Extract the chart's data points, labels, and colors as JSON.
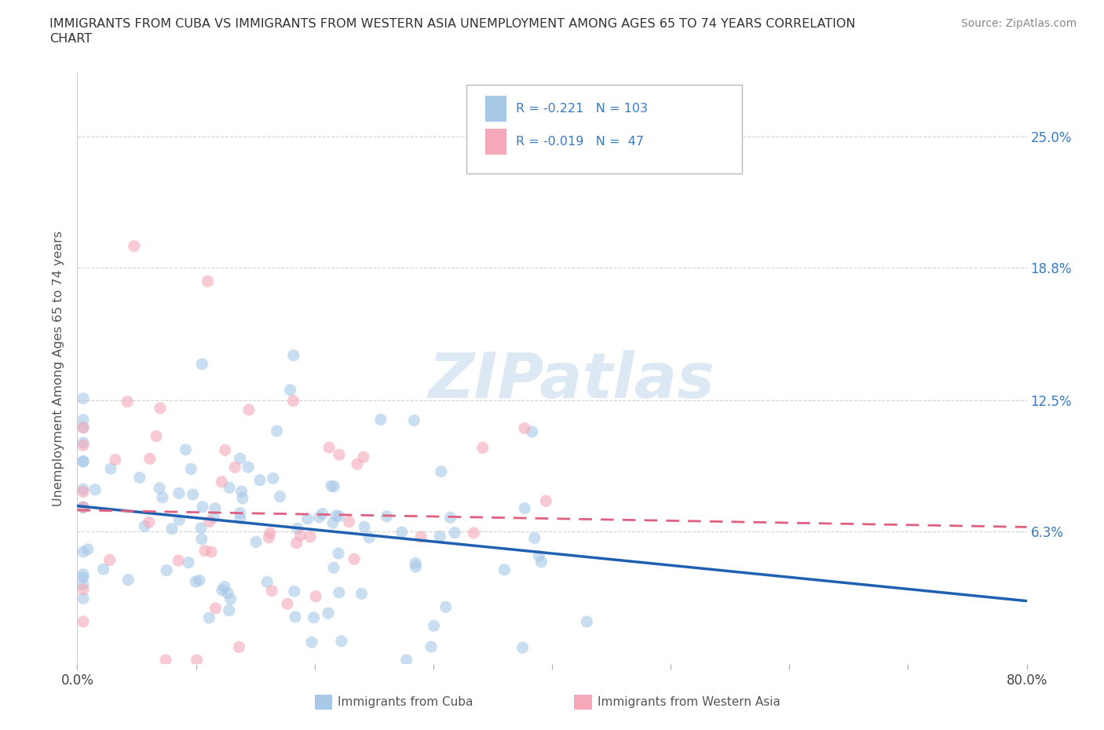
{
  "title_line1": "IMMIGRANTS FROM CUBA VS IMMIGRANTS FROM WESTERN ASIA UNEMPLOYMENT AMONG AGES 65 TO 74 YEARS CORRELATION",
  "title_line2": "CHART",
  "source": "Source: ZipAtlas.com",
  "ylabel": "Unemployment Among Ages 65 to 74 years",
  "xmin": 0.0,
  "xmax": 0.8,
  "ymin": 0.0,
  "ymax": 0.28,
  "ytick_vals": [
    0.063,
    0.125,
    0.188,
    0.25
  ],
  "ytick_labels": [
    "6.3%",
    "12.5%",
    "18.8%",
    "25.0%"
  ],
  "xtick_vals": [
    0.0,
    0.1,
    0.2,
    0.3,
    0.4,
    0.5,
    0.6,
    0.7,
    0.8
  ],
  "xtick_labels": [
    "0.0%",
    "",
    "",
    "",
    "",
    "",
    "",
    "",
    "80.0%"
  ],
  "legend1_color": "#a8c8e8",
  "legend2_color": "#f4a8b8",
  "trendline1_color": "#2060b0",
  "trendline2_color": "#e06080",
  "scatter1_color": "#a8c8e8",
  "scatter2_color": "#f4a8b8",
  "watermark_color": "#dce8f4",
  "grid_color": "#c8c8c8",
  "background_color": "#ffffff",
  "tick_color": "#3a7abf",
  "R1": -0.221,
  "N1": 103,
  "R2": -0.019,
  "N2": 47
}
